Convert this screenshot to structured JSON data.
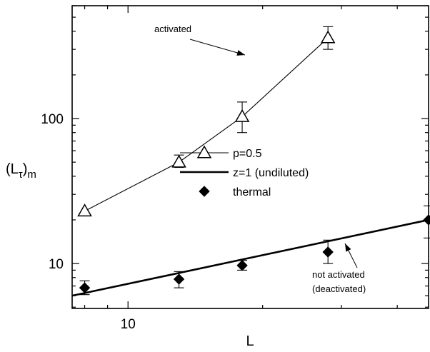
{
  "chart_data": {
    "type": "scatter",
    "scale": {
      "x": "log",
      "y": "log"
    },
    "xlim": [
      7.5,
      47
    ],
    "ylim": [
      4.9,
      600
    ],
    "x_ticks": [
      10
    ],
    "y_ticks": [
      10,
      100
    ],
    "x_tick_labels": [
      "10"
    ],
    "y_tick_labels": [
      "10",
      "100"
    ],
    "xlabel": "L",
    "ylabel": {
      "main": "(L",
      "sub_tau": "τ",
      "close": ")",
      "sub_m": "m"
    },
    "grid": false,
    "legend_placement": "center",
    "colors": {
      "axes": "#000000",
      "series": "#000000",
      "background": "#ffffff"
    },
    "series": [
      {
        "name": "p=0.5",
        "marker": "open-triangle",
        "line": "thin-solid",
        "points": [
          {
            "x": 8,
            "y": 23,
            "err_lo": 0,
            "err_hi": 0
          },
          {
            "x": 13,
            "y": 50,
            "err_lo": 46,
            "err_hi": 56
          },
          {
            "x": 18,
            "y": 103,
            "err_lo": 80,
            "err_hi": 130
          },
          {
            "x": 28,
            "y": 360,
            "err_lo": 300,
            "err_hi": 430
          }
        ]
      },
      {
        "name": "z=1 (undiluted)",
        "marker": "none",
        "line": "thick-solid",
        "points": [
          {
            "x": 7.5,
            "y": 6.0
          },
          {
            "x": 47,
            "y": 20.0
          }
        ]
      },
      {
        "name": "thermal",
        "marker": "filled-diamond",
        "line": "none",
        "points": [
          {
            "x": 8,
            "y": 6.8,
            "err_lo": 6.1,
            "err_hi": 7.6
          },
          {
            "x": 13,
            "y": 7.8,
            "err_lo": 6.8,
            "err_hi": 8.8
          },
          {
            "x": 18,
            "y": 9.7,
            "err_lo": 9.0,
            "err_hi": 10.5
          },
          {
            "x": 28,
            "y": 12.0,
            "err_lo": 10.0,
            "err_hi": 14.5
          },
          {
            "x": 47,
            "y": 20.0,
            "err_lo": 15.0,
            "err_hi": 25.0
          }
        ]
      }
    ],
    "annotations": [
      {
        "text": "activated"
      },
      {
        "text": "not activated"
      },
      {
        "text": "(deactivated)"
      }
    ]
  }
}
